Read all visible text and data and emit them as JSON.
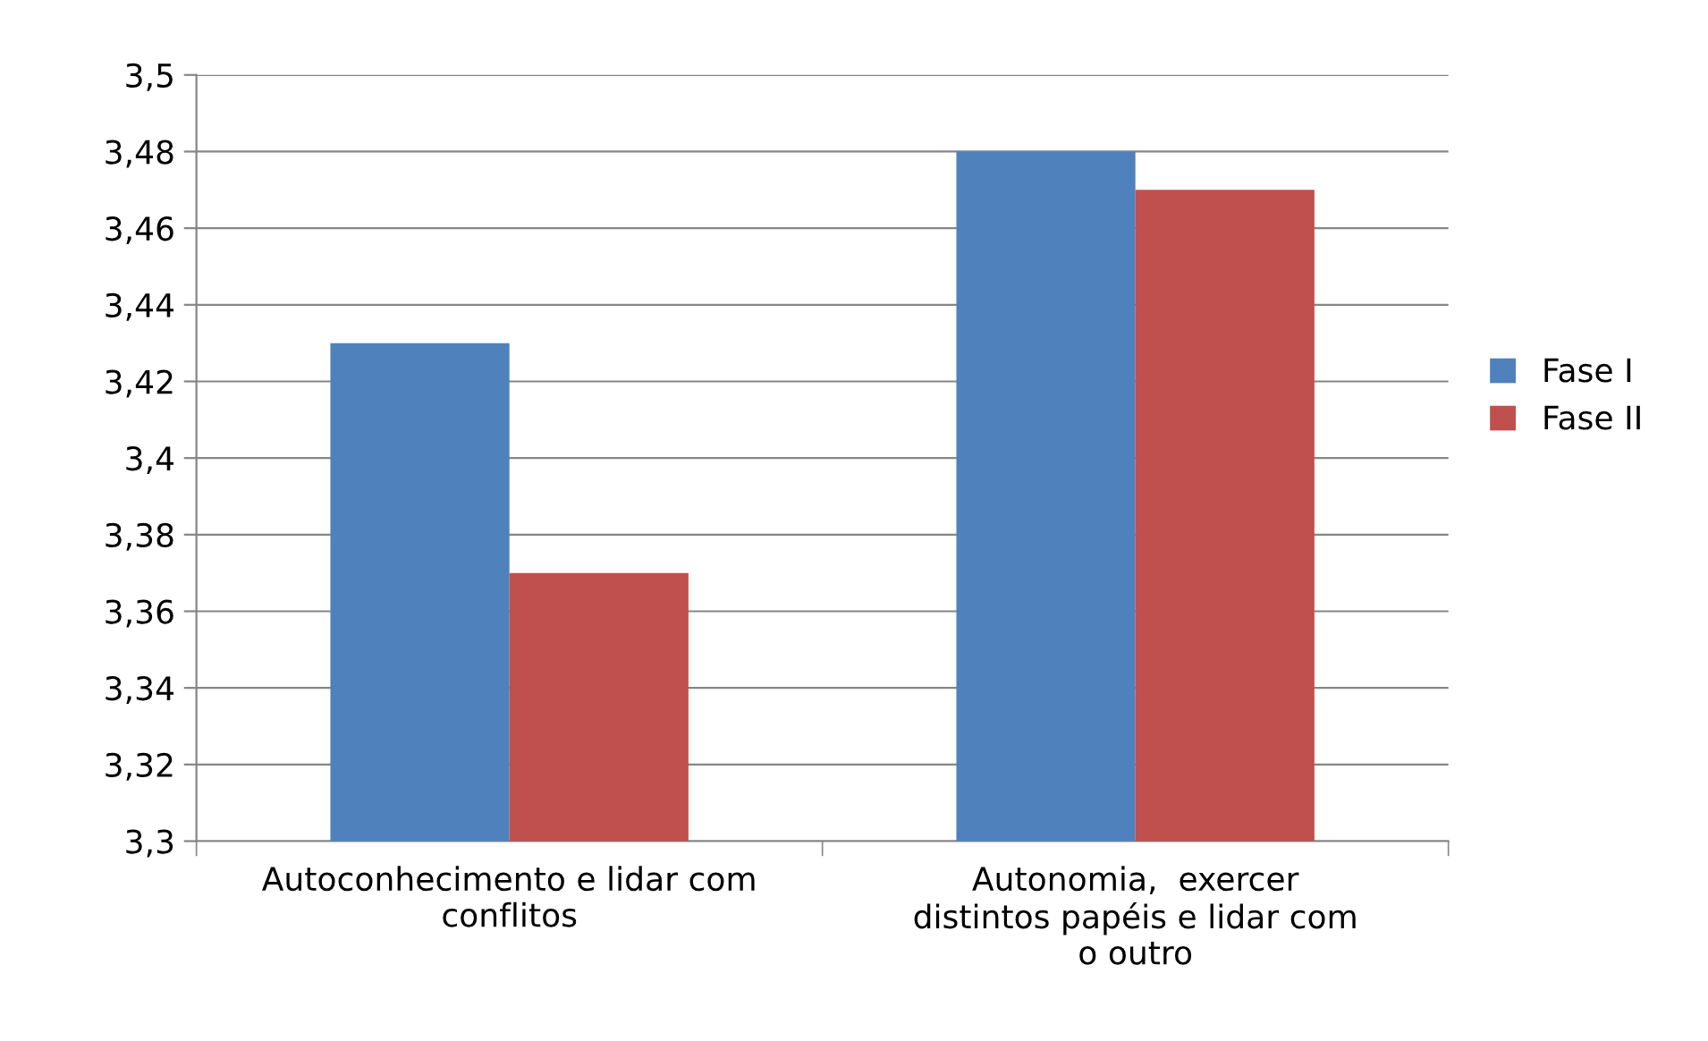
{
  "chart_data": {
    "type": "bar",
    "categories": [
      "Autoconhecimento e lidar com conflitos",
      "Autonomia,  exercer distintos papéis e lidar com o outro"
    ],
    "series": [
      {
        "name": "Fase I",
        "color": "#4f81bd",
        "values": [
          3.43,
          3.48
        ]
      },
      {
        "name": "Fase II",
        "color": "#c0504d",
        "values": [
          3.37,
          3.47
        ]
      }
    ],
    "ylim": [
      3.3,
      3.5
    ],
    "yticks": [
      {
        "value": 3.3,
        "label": "3,3"
      },
      {
        "value": 3.32,
        "label": "3,32"
      },
      {
        "value": 3.34,
        "label": "3,34"
      },
      {
        "value": 3.36,
        "label": "3,36"
      },
      {
        "value": 3.38,
        "label": "3,38"
      },
      {
        "value": 3.4,
        "label": "3,4"
      },
      {
        "value": 3.42,
        "label": "3,42"
      },
      {
        "value": 3.44,
        "label": "3,44"
      },
      {
        "value": 3.46,
        "label": "3,46"
      },
      {
        "value": 3.48,
        "label": "3,48"
      },
      {
        "value": 3.5,
        "label": "3,5"
      }
    ],
    "grid": "y",
    "legend": "right"
  }
}
